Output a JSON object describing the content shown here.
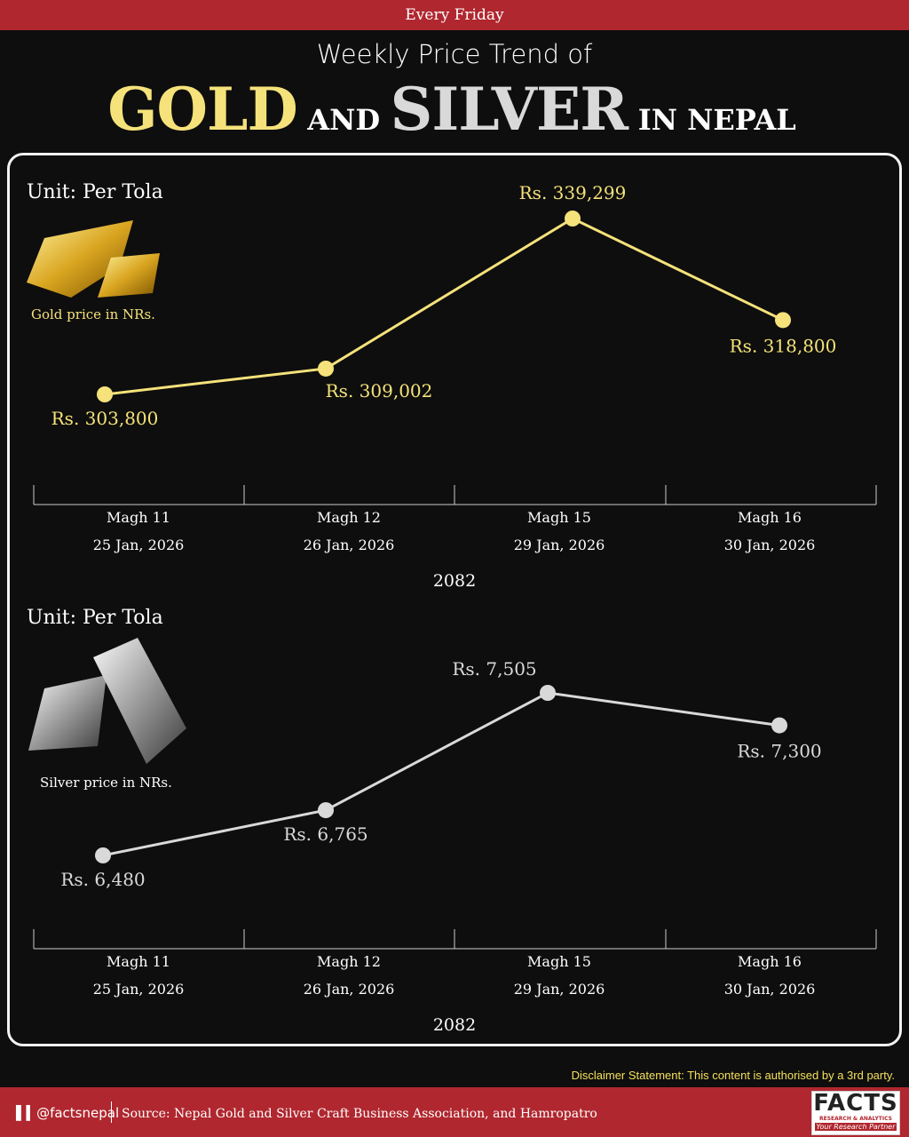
{
  "header": {
    "banner": "Every Friday",
    "subtitle": "Weekly Price Trend of",
    "title_gold": "GOLD",
    "title_and": "AND",
    "title_silver": "SILVER",
    "title_rest": "IN NEPAL"
  },
  "colors": {
    "gold": "#f5e27a",
    "silver": "#d9d9d9",
    "brand_red": "#b0272f",
    "background": "#0e0e0e"
  },
  "chart_data": [
    {
      "type": "line",
      "unit": "Unit: Per Tola",
      "caption": "Gold price in NRs.",
      "categories": [
        "Magh 11",
        "Magh 12",
        "Magh 15",
        "Magh 16"
      ],
      "dates": [
        "25 Jan, 2026",
        "26 Jan, 2026",
        "29 Jan, 2026",
        "30 Jan, 2026"
      ],
      "year": "2082",
      "values": [
        303800,
        309002,
        339299,
        318800
      ],
      "labels": [
        "Rs. 303,800",
        "Rs. 309,002",
        "Rs. 339,299",
        "Rs. 318,800"
      ],
      "color": "#f5e27a"
    },
    {
      "type": "line",
      "unit": "Unit: Per Tola",
      "caption": "Silver price in NRs.",
      "categories": [
        "Magh 11",
        "Magh 12",
        "Magh 15",
        "Magh 16"
      ],
      "dates": [
        "25 Jan, 2026",
        "26 Jan, 2026",
        "29 Jan, 2026",
        "30 Jan, 2026"
      ],
      "year": "2082",
      "values": [
        6480,
        6765,
        7505,
        7300
      ],
      "labels": [
        "Rs. 6,480",
        "Rs. 6,765",
        "Rs. 7,505",
        "Rs. 7,300"
      ],
      "color": "#d9d9d9"
    }
  ],
  "footer": {
    "disclaimer": "Disclaimer Statement: This content is authorised by a 3rd party.",
    "handle": "@factsnepal",
    "source": "Source: Nepal Gold and Silver Craft Business Association, and Hamropatro",
    "logo_text": "FACTS",
    "logo_sub": "RESEARCH & ANALYTICS",
    "logo_tag": "Your Research Partner"
  }
}
